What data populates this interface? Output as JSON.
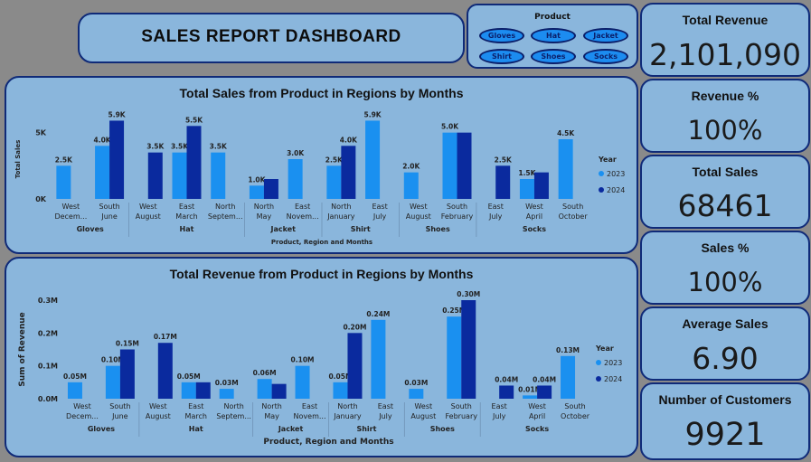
{
  "header": {
    "title": "SALES REPORT DASHBOARD"
  },
  "slicer": {
    "label": "Product",
    "options": [
      "Gloves",
      "Hat",
      "Jacket",
      "Shirt",
      "Shoes",
      "Socks"
    ]
  },
  "kpis": [
    {
      "title": "Total Revenue",
      "value": "2,101,090"
    },
    {
      "title": "Revenue %",
      "value": "100%"
    },
    {
      "title": "Total Sales",
      "value": "68461"
    },
    {
      "title": "Sales %",
      "value": "100%"
    },
    {
      "title": "Average Sales",
      "value": "6.90"
    },
    {
      "title": "Number of Customers",
      "value": "9921"
    }
  ],
  "colors": {
    "y2023": "#1a90f0",
    "y2024": "#0a2a9e",
    "panel": "#8ab6dc",
    "border": "#0f2a78"
  },
  "chart_data": [
    {
      "type": "bar",
      "title": "Total Sales from Product in Regions by Months",
      "xlabel": "Product, Region and Months",
      "ylabel": "Total Sales",
      "legend_title": "Year",
      "legend_position": "right",
      "yticks": [
        "0K",
        "5K"
      ],
      "ylim": [
        0,
        6000
      ],
      "categories": [
        {
          "product": "Gloves",
          "region": "West",
          "month": "Decem...",
          "v2023": 2500,
          "l2023": "2.5K",
          "v2024": null,
          "l2024": ""
        },
        {
          "product": "Gloves",
          "region": "South",
          "month": "June",
          "v2023": 4000,
          "l2023": "4.0K",
          "v2024": 5900,
          "l2024": "5.9K"
        },
        {
          "product": "Hat",
          "region": "West",
          "month": "August",
          "v2023": null,
          "l2023": "",
          "v2024": 3500,
          "l2024": "3.5K"
        },
        {
          "product": "Hat",
          "region": "East",
          "month": "March",
          "v2023": 3500,
          "l2023": "3.5K",
          "v2024": 5500,
          "l2024": "5.5K"
        },
        {
          "product": "Hat",
          "region": "North",
          "month": "Septem...",
          "v2023": 3500,
          "l2023": "3.5K",
          "v2024": null,
          "l2024": ""
        },
        {
          "product": "Jacket",
          "region": "North",
          "month": "May",
          "v2023": 1000,
          "l2023": "1.0K",
          "v2024": 1500,
          "l2024": ""
        },
        {
          "product": "Jacket",
          "region": "East",
          "month": "Novem...",
          "v2023": 3000,
          "l2023": "3.0K",
          "v2024": null,
          "l2024": ""
        },
        {
          "product": "Shirt",
          "region": "North",
          "month": "January",
          "v2023": 2500,
          "l2023": "2.5K",
          "v2024": 4000,
          "l2024": "4.0K"
        },
        {
          "product": "Shirt",
          "region": "East",
          "month": "July",
          "v2023": 5900,
          "l2023": "5.9K",
          "v2024": null,
          "l2024": ""
        },
        {
          "product": "Shoes",
          "region": "West",
          "month": "August",
          "v2023": 2000,
          "l2023": "2.0K",
          "v2024": null,
          "l2024": ""
        },
        {
          "product": "Shoes",
          "region": "South",
          "month": "February",
          "v2023": 5000,
          "l2023": "5.0K",
          "v2024": 5000,
          "l2024": ""
        },
        {
          "product": "Socks",
          "region": "East",
          "month": "July",
          "v2023": null,
          "l2023": "",
          "v2024": 2500,
          "l2024": "2.5K"
        },
        {
          "product": "Socks",
          "region": "West",
          "month": "April",
          "v2023": 1500,
          "l2023": "1.5K",
          "v2024": 2000,
          "l2024": ""
        },
        {
          "product": "Socks",
          "region": "South",
          "month": "October",
          "v2023": 4500,
          "l2023": "4.5K",
          "v2024": null,
          "l2024": ""
        }
      ],
      "series": [
        {
          "name": "2023"
        },
        {
          "name": "2024"
        }
      ]
    },
    {
      "type": "bar",
      "title": "Total Revenue from Product in Regions by Months",
      "xlabel": "Product, Region and Months",
      "ylabel": "Sum of Revenue",
      "legend_title": "Year",
      "legend_position": "right",
      "yticks": [
        "0.0M",
        "0.1M",
        "0.2M",
        "0.3M"
      ],
      "ylim": [
        0,
        0.3
      ],
      "categories": [
        {
          "product": "Gloves",
          "region": "West",
          "month": "Decem...",
          "v2023": 0.05,
          "l2023": "0.05M",
          "v2024": null,
          "l2024": ""
        },
        {
          "product": "Gloves",
          "region": "South",
          "month": "June",
          "v2023": 0.1,
          "l2023": "0.10M",
          "v2024": 0.15,
          "l2024": "0.15M"
        },
        {
          "product": "Hat",
          "region": "West",
          "month": "August",
          "v2023": null,
          "l2023": "",
          "v2024": 0.17,
          "l2024": "0.17M"
        },
        {
          "product": "Hat",
          "region": "East",
          "month": "March",
          "v2023": 0.05,
          "l2023": "0.05M",
          "v2024": 0.05,
          "l2024": ""
        },
        {
          "product": "Hat",
          "region": "North",
          "month": "Septem...",
          "v2023": 0.03,
          "l2023": "0.03M",
          "v2024": null,
          "l2024": ""
        },
        {
          "product": "Jacket",
          "region": "North",
          "month": "May",
          "v2023": 0.06,
          "l2023": "0.06M",
          "v2024": 0.045,
          "l2024": ""
        },
        {
          "product": "Jacket",
          "region": "East",
          "month": "Novem...",
          "v2023": 0.1,
          "l2023": "0.10M",
          "v2024": null,
          "l2024": ""
        },
        {
          "product": "Shirt",
          "region": "North",
          "month": "January",
          "v2023": 0.05,
          "l2023": "0.05M",
          "v2024": 0.2,
          "l2024": "0.20M"
        },
        {
          "product": "Shirt",
          "region": "East",
          "month": "July",
          "v2023": 0.24,
          "l2023": "0.24M",
          "v2024": null,
          "l2024": ""
        },
        {
          "product": "Shoes",
          "region": "West",
          "month": "August",
          "v2023": 0.03,
          "l2023": "0.03M",
          "v2024": null,
          "l2024": ""
        },
        {
          "product": "Shoes",
          "region": "South",
          "month": "February",
          "v2023": 0.25,
          "l2023": "0.25M",
          "v2024": 0.3,
          "l2024": "0.30M"
        },
        {
          "product": "Socks",
          "region": "East",
          "month": "July",
          "v2023": null,
          "l2023": "",
          "v2024": 0.04,
          "l2024": "0.04M"
        },
        {
          "product": "Socks",
          "region": "West",
          "month": "April",
          "v2023": 0.01,
          "l2023": "0.01M",
          "v2024": 0.04,
          "l2024": "0.04M"
        },
        {
          "product": "Socks",
          "region": "South",
          "month": "October",
          "v2023": 0.13,
          "l2023": "0.13M",
          "v2024": null,
          "l2024": ""
        }
      ],
      "series": [
        {
          "name": "2023"
        },
        {
          "name": "2024"
        }
      ]
    }
  ]
}
